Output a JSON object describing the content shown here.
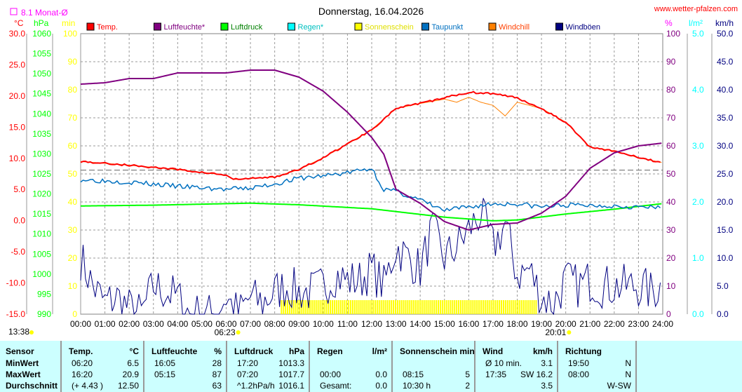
{
  "chart_data": {
    "type": "line",
    "title": "Donnerstag, 16.04.2026",
    "site": "www.wetter-pfalzen.com",
    "monthly_avg": "8.1 Monat-Ø",
    "monthly_avg_value": 8.1,
    "x_ticks": [
      "00:00",
      "01:00",
      "02:00",
      "03:00",
      "04:00",
      "05:00",
      "06:00",
      "07:00",
      "08:00",
      "09:00",
      "10:00",
      "11:00",
      "12:00",
      "13:00",
      "14:00",
      "15:00",
      "16:00",
      "17:00",
      "18:00",
      "19:00",
      "20:00",
      "21:00",
      "22:00",
      "23:00",
      "24:00"
    ],
    "axes": {
      "temp": {
        "unit": "°C",
        "ylim": [
          -15,
          30
        ],
        "ticks": [
          "30.0",
          "25.0",
          "20.0",
          "15.0",
          "10.0",
          "5.0",
          "0.0",
          "-5.0",
          "-10.0",
          "-15.0"
        ]
      },
      "pressure": {
        "unit": "hPa",
        "ylim": [
          990,
          1060
        ],
        "ticks": [
          "1060",
          "1055",
          "1050",
          "1045",
          "1040",
          "1035",
          "1030",
          "1025",
          "1020",
          "1015",
          "1010",
          "1005",
          "1000",
          "995",
          "990"
        ]
      },
      "sun": {
        "unit": "min",
        "ylim": [
          0,
          100
        ],
        "ticks": [
          "100",
          "90",
          "80",
          "70",
          "60",
          "50",
          "40",
          "30",
          "20",
          "10",
          "0"
        ]
      },
      "humidity": {
        "unit": "%",
        "ylim": [
          0,
          100
        ],
        "ticks": [
          "100",
          "90",
          "80",
          "70",
          "60",
          "50",
          "40",
          "30",
          "20",
          "10",
          "0"
        ]
      },
      "rain": {
        "unit": "l/m²",
        "ylim": [
          0,
          5
        ],
        "ticks": [
          "5.0",
          "4.0",
          "3.0",
          "2.0",
          "1.0",
          "0.0"
        ]
      },
      "wind": {
        "unit": "km/h",
        "ylim": [
          0,
          50
        ],
        "ticks": [
          "50.0",
          "45.0",
          "40.0",
          "35.0",
          "30.0",
          "25.0",
          "20.0",
          "15.0",
          "10.0",
          "5.0",
          "0.0"
        ]
      }
    },
    "legend": [
      {
        "name": "Temp.",
        "color": "#ff0000",
        "text": "#ff0000"
      },
      {
        "name": "Luftfeuchte*",
        "color": "#800080",
        "text": "#800080"
      },
      {
        "name": "Luftdruck",
        "color": "#00ff00",
        "text": "#008000"
      },
      {
        "name": "Regen*",
        "color": "#00ffff",
        "text": "#00c0c0"
      },
      {
        "name": "Sonnenschein",
        "color": "#ffff00",
        "text": "#e0e000"
      },
      {
        "name": "Taupunkt",
        "color": "#0070c0",
        "text": "#0070c0"
      },
      {
        "name": "Windchill",
        "color": "#ff8000",
        "text": "#ff4000"
      },
      {
        "name": "Windböen",
        "color": "#000080",
        "text": "#000080"
      }
    ],
    "series": {
      "temp": {
        "x": [
          0,
          2,
          4,
          6,
          6.3,
          8,
          9,
          10,
          11,
          12,
          13,
          14,
          15,
          16,
          17,
          18,
          19,
          20,
          21,
          22,
          23,
          24
        ],
        "y": [
          9.5,
          8.9,
          8.2,
          7.3,
          6.6,
          7.0,
          8.2,
          10.1,
          12.3,
          14.6,
          18.0,
          18.8,
          19.7,
          20.6,
          20.4,
          19.7,
          18.0,
          15.8,
          11.8,
          11.2,
          10.1,
          9.3
        ]
      },
      "windchill": {
        "x": [
          0,
          2,
          4,
          6,
          6.3,
          8,
          9,
          10,
          11,
          12,
          13,
          14,
          15,
          15.5,
          16,
          16.5,
          17,
          17.5,
          18,
          19,
          20,
          21,
          22,
          23,
          24
        ],
        "y": [
          9.5,
          8.9,
          8.2,
          7.3,
          6.6,
          7.0,
          8.2,
          10.1,
          12.3,
          14.6,
          18.0,
          18.8,
          19.5,
          19.0,
          19.8,
          19.0,
          18.5,
          16.8,
          19.0,
          18.0,
          15.8,
          11.8,
          11.2,
          10.1,
          9.3
        ]
      },
      "humidity": {
        "x": [
          0,
          1,
          2,
          3,
          4,
          6,
          7,
          8,
          9,
          10,
          11,
          12,
          12.5,
          13,
          14,
          15,
          16,
          17,
          18,
          19,
          20,
          21,
          22,
          23,
          24
        ],
        "y": [
          82,
          82.5,
          84,
          84,
          86,
          86,
          87,
          87,
          84.5,
          79.5,
          72,
          63,
          57,
          44.5,
          39.5,
          33,
          30,
          32,
          32.5,
          36,
          42,
          52,
          57.5,
          60,
          61
        ]
      },
      "pressure": {
        "x": [
          0,
          3,
          7,
          9,
          12,
          15,
          17,
          18,
          20,
          22,
          24
        ],
        "y": [
          1017.0,
          1017.2,
          1017.7,
          1017.3,
          1016.3,
          1014.2,
          1013.3,
          1013.5,
          1015.0,
          1016.2,
          1017.6
        ]
      },
      "dewpoint": {
        "x": [
          0,
          2,
          4,
          6,
          7,
          8,
          9,
          10,
          11,
          12,
          12.5,
          13,
          14,
          15,
          16,
          17,
          18,
          19,
          20,
          22,
          24
        ],
        "y": [
          6.6,
          6.2,
          5.5,
          5.0,
          5.2,
          5.9,
          6.8,
          7.2,
          7.7,
          8.4,
          5.0,
          4.7,
          3.3,
          1.6,
          2.2,
          2.7,
          2.7,
          2.2,
          2.5,
          2.4,
          2.0
        ]
      },
      "wind": {
        "x": [
          0,
          0.5,
          1,
          1.5,
          2,
          2.5,
          3,
          3.5,
          4,
          4.5,
          5,
          5.5,
          6,
          6.5,
          7,
          7.5,
          8,
          8.5,
          9,
          9.5,
          10,
          10.5,
          11,
          11.5,
          12,
          12.5,
          13,
          13.5,
          14,
          14.5,
          15,
          15.5,
          16,
          16.5,
          17,
          17.5,
          18,
          18.5,
          19,
          19.5,
          20,
          20.5,
          21,
          21.5,
          22,
          22.5,
          23,
          23.5,
          24
        ],
        "y": [
          10,
          5,
          2,
          3,
          1,
          0,
          5,
          4,
          3,
          0,
          0,
          0,
          3,
          0,
          3,
          2,
          4,
          5,
          4,
          4,
          5,
          7,
          6,
          6,
          8,
          5,
          12,
          10,
          8,
          15,
          10,
          12,
          15,
          18,
          12,
          16,
          7,
          8,
          3,
          2,
          6,
          5,
          6,
          5,
          5,
          5,
          5,
          4,
          5
        ]
      },
      "sunshine": {
        "from": 8.25,
        "to": 18.75,
        "value": 5
      }
    },
    "markers": {
      "sunrise": "06:23",
      "sunset": "20:01",
      "left_time": "13:38"
    }
  },
  "table": {
    "cols": [
      {
        "h1": "Sensor",
        "h2": "",
        "rows": [
          [
            "MinWert",
            ""
          ],
          [
            "MaxWert",
            ""
          ],
          [
            "Durchschnitt",
            ""
          ]
        ]
      },
      {
        "h1": "Temp.",
        "h2": "°C",
        "rows": [
          [
            "06:20",
            "6.5"
          ],
          [
            "16:20",
            "20.9"
          ],
          [
            "(+ 4.43 )",
            "12.50"
          ]
        ]
      },
      {
        "h1": "Luftfeuchte",
        "h2": "%",
        "rows": [
          [
            "16:05",
            "28"
          ],
          [
            "05:15",
            "87"
          ],
          [
            "",
            "63"
          ]
        ]
      },
      {
        "h1": "Luftdruck",
        "h2": "hPa",
        "rows": [
          [
            "17:20",
            "1013.3"
          ],
          [
            "07:20",
            "1017.7"
          ],
          [
            "^1.2hPa/h",
            "1016.1"
          ]
        ]
      },
      {
        "h1": "Regen",
        "h2": "l/m²",
        "rows": [
          [
            "",
            ""
          ],
          [
            "00:00",
            "0.0"
          ],
          [
            "Gesamt:",
            "0.0"
          ]
        ]
      },
      {
        "h1": "Sonnenschein min",
        "h2": "",
        "rows": [
          [
            "",
            ""
          ],
          [
            "08:15",
            "5"
          ],
          [
            "10:30 h",
            "2"
          ]
        ]
      },
      {
        "h1": "Wind",
        "h2": "km/h",
        "rows": [
          [
            "Ø 10 min.",
            "3.1"
          ],
          [
            "17:35",
            "SW 16.2"
          ],
          [
            "",
            "3.5"
          ]
        ]
      },
      {
        "h1": "Richtung",
        "h2": "",
        "rows": [
          [
            "19:50",
            "N"
          ],
          [
            "08:00",
            "N"
          ],
          [
            "",
            "W-SW"
          ]
        ]
      }
    ]
  }
}
